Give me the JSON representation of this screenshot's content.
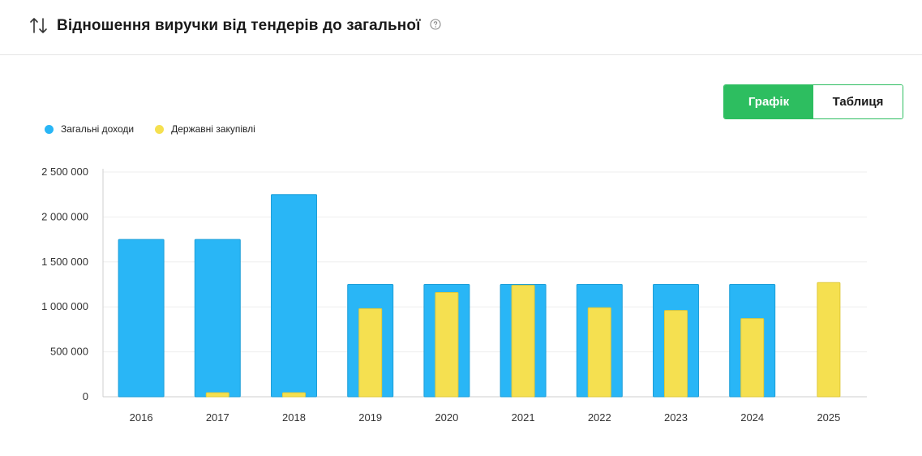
{
  "header": {
    "title": "Відношення виручки від тендерів до загальної"
  },
  "view_toggle": {
    "chart_label": "Графік",
    "table_label": "Таблиця",
    "active": "chart"
  },
  "colors": {
    "total": "#29b6f6",
    "total_stroke": "#1e9fd8",
    "tender": "#f5e050",
    "tender_stroke": "#e0c93a",
    "accent": "#2dbe60"
  },
  "chart_data": {
    "type": "bar",
    "title": "",
    "xlabel": "",
    "ylabel": "",
    "categories": [
      "2016",
      "2017",
      "2018",
      "2019",
      "2020",
      "2021",
      "2022",
      "2023",
      "2024",
      "2025"
    ],
    "series": [
      {
        "name": "Загальні доходи",
        "values": [
          1750000,
          1750000,
          2250000,
          1250000,
          1250000,
          1250000,
          1250000,
          1250000,
          1250000,
          0
        ]
      },
      {
        "name": "Державні закупівлі",
        "values": [
          0,
          45000,
          45000,
          980000,
          1160000,
          1240000,
          990000,
          960000,
          870000,
          1270000
        ]
      }
    ],
    "ylim": [
      0,
      2500000
    ],
    "yticks": [
      0,
      500000,
      1000000,
      1500000,
      2000000,
      2500000
    ],
    "ytick_labels": [
      "0",
      "500 000",
      "1 000 000",
      "1 500 000",
      "2 000 000",
      "2 500 000"
    ],
    "grid": true,
    "legend_position": "top-left"
  }
}
